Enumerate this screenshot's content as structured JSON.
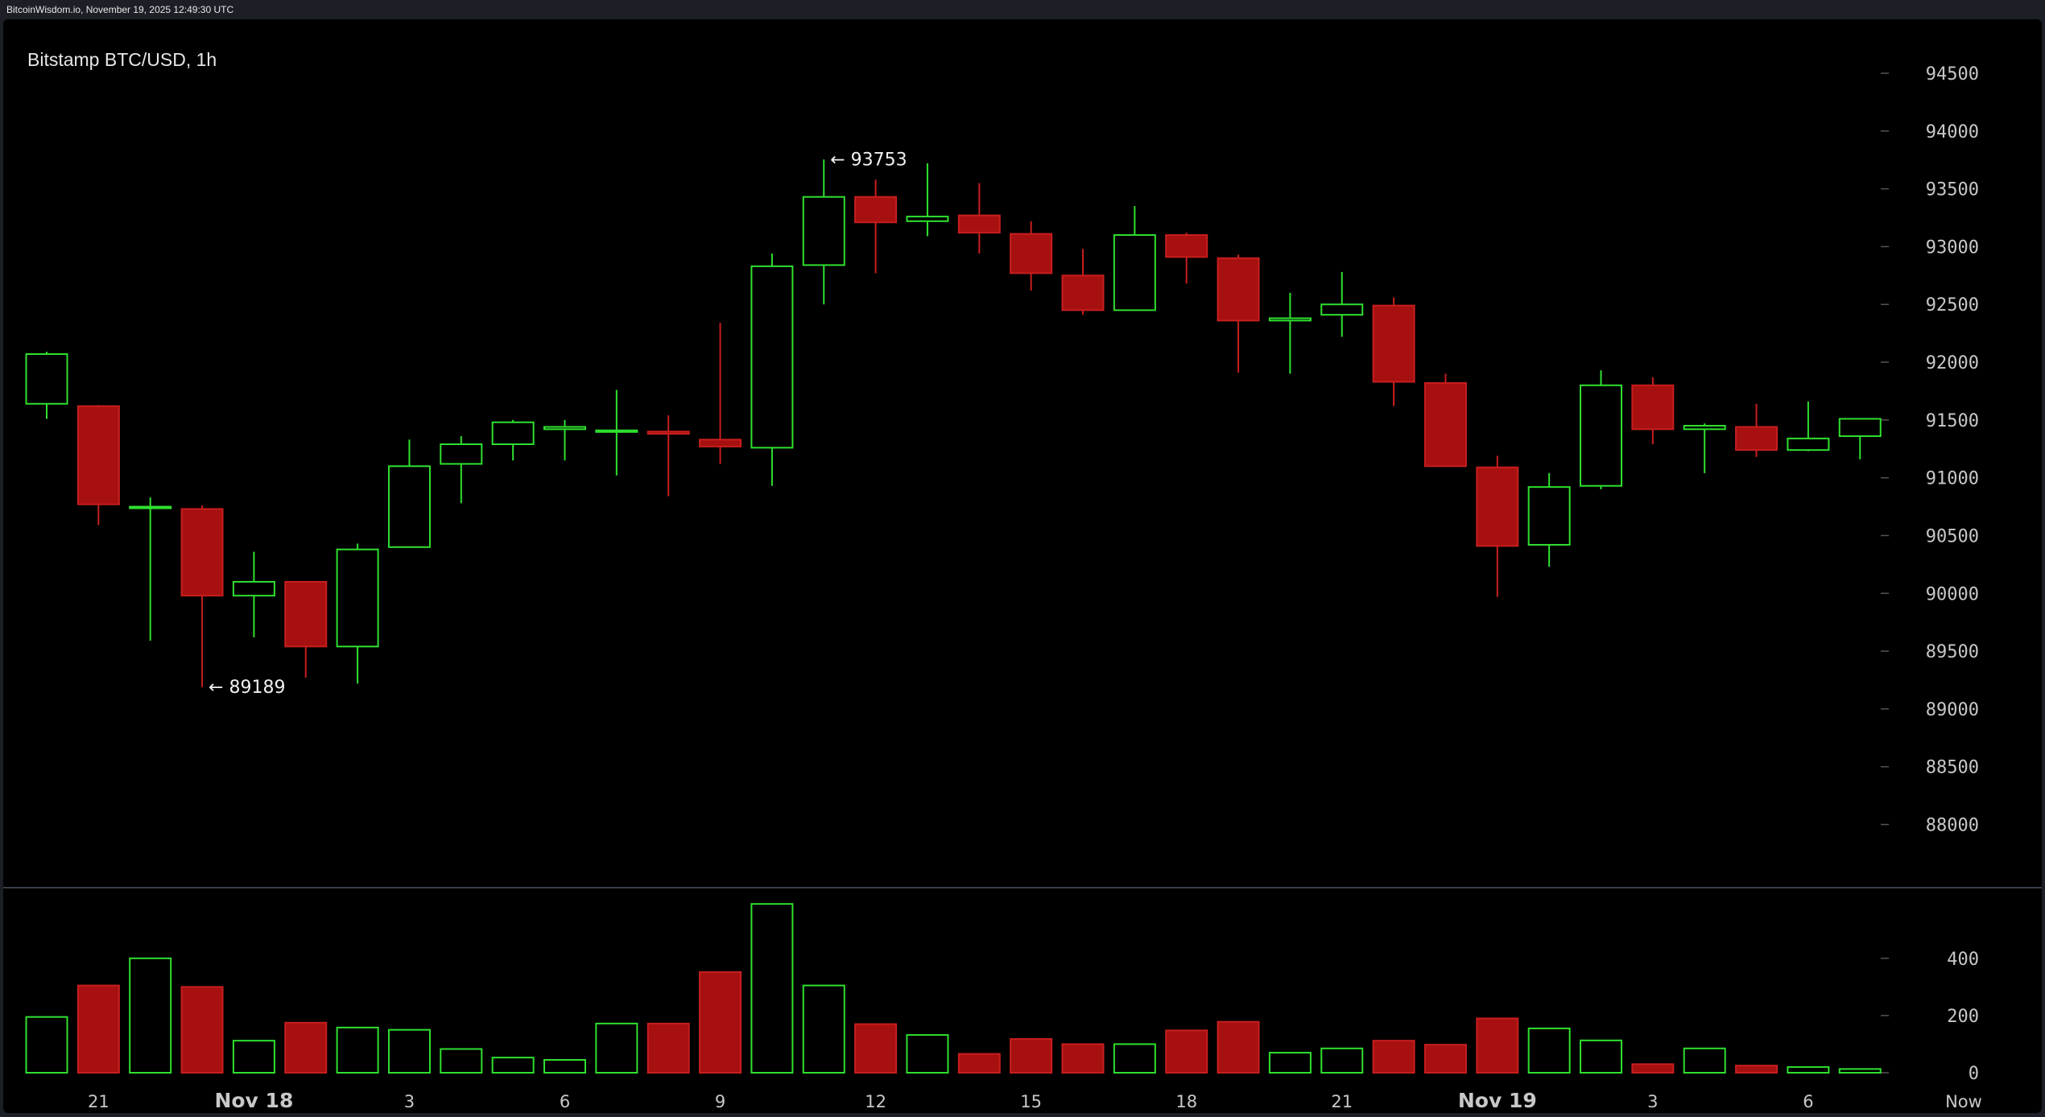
{
  "header": {
    "timestamp": "BitcoinWisdom.io, November 19, 2025 12:49:30 UTC"
  },
  "chart_data": {
    "type": "candlestick",
    "title": "Bitstamp BTC/USD, 1h",
    "price_axis": {
      "ticks": [
        88000,
        88500,
        89000,
        89500,
        90000,
        90500,
        91000,
        91500,
        92000,
        92500,
        93000,
        93500,
        94000,
        94500
      ]
    },
    "volume_axis": {
      "ticks": [
        0,
        200,
        400
      ]
    },
    "x_labels": [
      {
        "index": 1,
        "label": "21"
      },
      {
        "index": 4,
        "label": "Nov 18",
        "bold": true
      },
      {
        "index": 7,
        "label": "3"
      },
      {
        "index": 10,
        "label": "6"
      },
      {
        "index": 13,
        "label": "9"
      },
      {
        "index": 16,
        "label": "12"
      },
      {
        "index": 19,
        "label": "15"
      },
      {
        "index": 22,
        "label": "18"
      },
      {
        "index": 25,
        "label": "21"
      },
      {
        "index": 28,
        "label": "Nov 19",
        "bold": true
      },
      {
        "index": 31,
        "label": "3"
      },
      {
        "index": 34,
        "label": "6"
      },
      {
        "index": 37,
        "label": "Now"
      }
    ],
    "annotations": [
      {
        "text": "← 93753",
        "index": 15,
        "price": 93753
      },
      {
        "text": "← 89189",
        "index": 3,
        "price": 89189
      }
    ],
    "colors": {
      "up": "#2fe02f",
      "down": "#a71010",
      "downBorder": "#c81e1e",
      "grid_text": "#c8c8c8"
    },
    "candles": [
      {
        "o": 91640,
        "h": 92090,
        "l": 91510,
        "c": 92070,
        "v": 195
      },
      {
        "o": 91620,
        "h": 91630,
        "l": 90590,
        "c": 90770,
        "v": 305
      },
      {
        "o": 90750,
        "h": 90830,
        "l": 89590,
        "c": 90750,
        "v": 400
      },
      {
        "o": 90730,
        "h": 90760,
        "l": 89189,
        "c": 89980,
        "v": 300
      },
      {
        "o": 89980,
        "h": 90360,
        "l": 89620,
        "c": 90100,
        "v": 112
      },
      {
        "o": 90100,
        "h": 90100,
        "l": 89270,
        "c": 89540,
        "v": 175
      },
      {
        "o": 89540,
        "h": 90430,
        "l": 89220,
        "c": 90380,
        "v": 158
      },
      {
        "o": 90400,
        "h": 91330,
        "l": 90400,
        "c": 91100,
        "v": 150
      },
      {
        "o": 91120,
        "h": 91360,
        "l": 90780,
        "c": 91290,
        "v": 83
      },
      {
        "o": 91290,
        "h": 91500,
        "l": 91150,
        "c": 91480,
        "v": 53
      },
      {
        "o": 91420,
        "h": 91500,
        "l": 91150,
        "c": 91440,
        "v": 45
      },
      {
        "o": 91400,
        "h": 91760,
        "l": 91020,
        "c": 91410,
        "v": 172
      },
      {
        "o": 91400,
        "h": 91540,
        "l": 90840,
        "c": 91380,
        "v": 172
      },
      {
        "o": 91330,
        "h": 92340,
        "l": 91120,
        "c": 91270,
        "v": 352
      },
      {
        "o": 91260,
        "h": 92940,
        "l": 90930,
        "c": 92830,
        "v": 590
      },
      {
        "o": 92840,
        "h": 93753,
        "l": 92500,
        "c": 93430,
        "v": 305
      },
      {
        "o": 93430,
        "h": 93580,
        "l": 92770,
        "c": 93210,
        "v": 170
      },
      {
        "o": 93220,
        "h": 93720,
        "l": 93090,
        "c": 93260,
        "v": 132
      },
      {
        "o": 93270,
        "h": 93550,
        "l": 92940,
        "c": 93120,
        "v": 66
      },
      {
        "o": 93110,
        "h": 93220,
        "l": 92620,
        "c": 92770,
        "v": 118
      },
      {
        "o": 92750,
        "h": 92980,
        "l": 92410,
        "c": 92450,
        "v": 100
      },
      {
        "o": 92450,
        "h": 93350,
        "l": 92450,
        "c": 93100,
        "v": 100
      },
      {
        "o": 93100,
        "h": 93120,
        "l": 92680,
        "c": 92910,
        "v": 148
      },
      {
        "o": 92900,
        "h": 92930,
        "l": 91910,
        "c": 92360,
        "v": 178
      },
      {
        "o": 92360,
        "h": 92600,
        "l": 91900,
        "c": 92380,
        "v": 70
      },
      {
        "o": 92410,
        "h": 92780,
        "l": 92220,
        "c": 92500,
        "v": 85
      },
      {
        "o": 92490,
        "h": 92560,
        "l": 91620,
        "c": 91830,
        "v": 112
      },
      {
        "o": 91820,
        "h": 91900,
        "l": 91100,
        "c": 91100,
        "v": 98
      },
      {
        "o": 91090,
        "h": 91190,
        "l": 89970,
        "c": 90410,
        "v": 190
      },
      {
        "o": 90420,
        "h": 91040,
        "l": 90230,
        "c": 90920,
        "v": 155
      },
      {
        "o": 90930,
        "h": 91930,
        "l": 90900,
        "c": 91800,
        "v": 113
      },
      {
        "o": 91800,
        "h": 91870,
        "l": 91290,
        "c": 91420,
        "v": 30
      },
      {
        "o": 91420,
        "h": 91470,
        "l": 91040,
        "c": 91450,
        "v": 85
      },
      {
        "o": 91440,
        "h": 91640,
        "l": 91180,
        "c": 91240,
        "v": 25
      },
      {
        "o": 91240,
        "h": 91660,
        "l": 91230,
        "c": 91340,
        "v": 20
      },
      {
        "o": 91360,
        "h": 91510,
        "l": 91160,
        "c": 91510,
        "v": 13
      }
    ]
  }
}
